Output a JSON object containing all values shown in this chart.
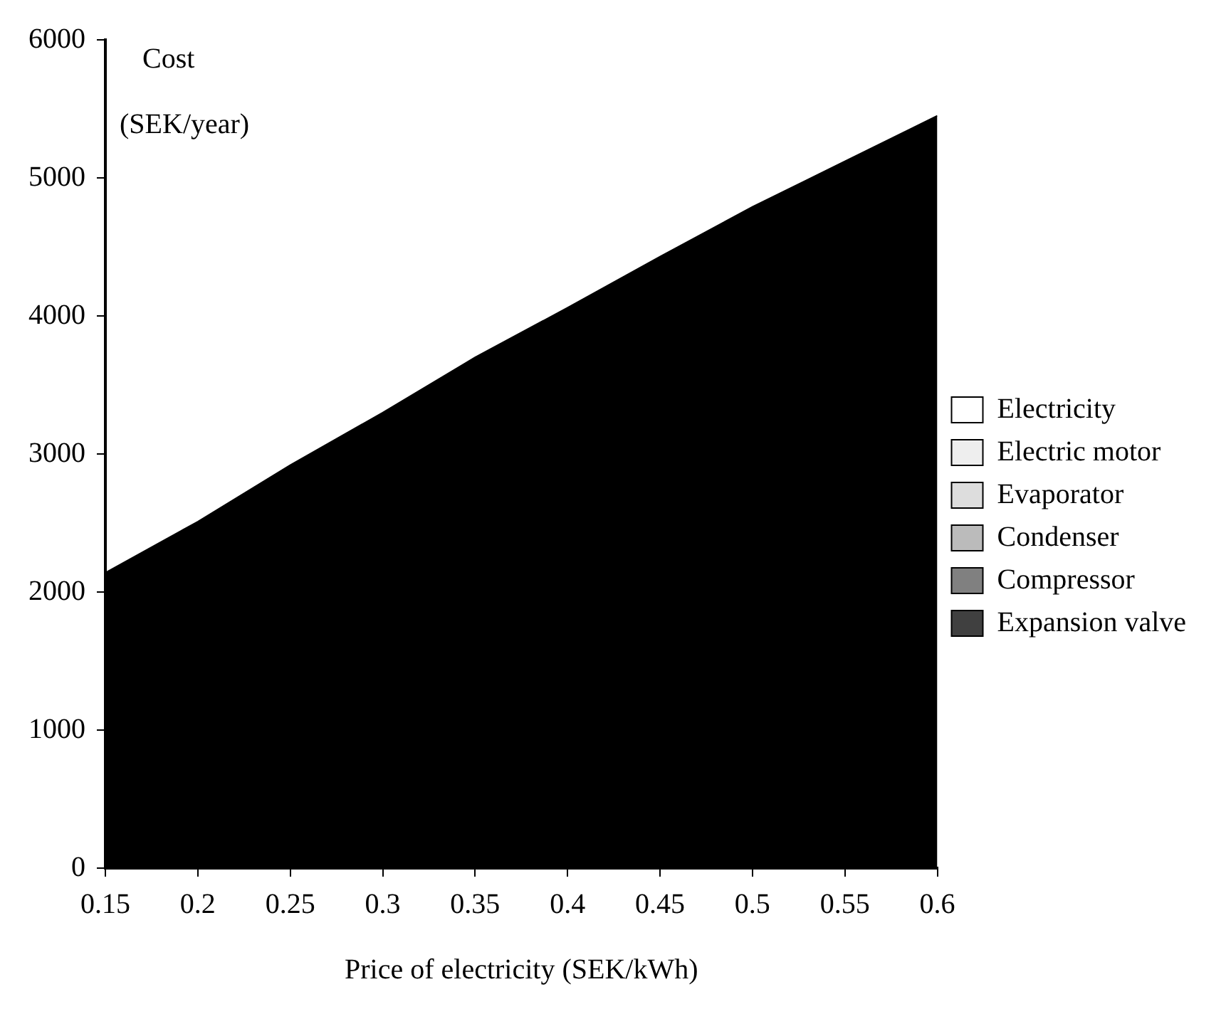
{
  "chart_data": {
    "type": "area",
    "ylabel": "Cost\n(SEK/year)",
    "xlabel": "Price of electricity (SEK/kWh)",
    "x": [
      0.15,
      0.2,
      0.25,
      0.3,
      0.35,
      0.4,
      0.45,
      0.5,
      0.55,
      0.6
    ],
    "series": [
      {
        "color": "#000000",
        "values": [
          2140,
          2510,
          2920,
          3300,
          3700,
          4060,
          4430,
          4790,
          5120,
          5450
        ]
      },
      {
        "name": "Electricity",
        "color": "#ffffff",
        "values": [
          null,
          null,
          null,
          null,
          null,
          null,
          null,
          null,
          null,
          null
        ]
      },
      {
        "name": "Electric motor",
        "color": "#eeeeee",
        "values": [
          null,
          null,
          null,
          null,
          null,
          null,
          null,
          null,
          null,
          null
        ]
      },
      {
        "name": "Evaporator",
        "color": "#dddddd",
        "values": [
          null,
          null,
          null,
          null,
          null,
          null,
          null,
          null,
          null,
          null
        ]
      },
      {
        "name": "Condenser",
        "color": "#bbbbbb",
        "values": [
          null,
          null,
          null,
          null,
          null,
          null,
          null,
          null,
          null,
          null
        ]
      },
      {
        "name": "Compressor",
        "color": "#808080",
        "values": [
          null,
          null,
          null,
          null,
          null,
          null,
          null,
          null,
          null,
          null
        ]
      },
      {
        "name": "Expansion valve",
        "color": "#404040",
        "values": [
          null,
          null,
          null,
          null,
          null,
          null,
          null,
          null,
          null,
          null
        ]
      }
    ],
    "xlim": [
      0.15,
      0.6
    ],
    "xticks": [
      0.15,
      0.2,
      0.25,
      0.3,
      0.35,
      0.4,
      0.45,
      0.5,
      0.55,
      0.6
    ],
    "ylim": [
      0,
      6000
    ],
    "yticks": [
      0,
      1000,
      2000,
      3000,
      4000,
      5000,
      6000
    ],
    "legend": "right",
    "grid": false
  }
}
